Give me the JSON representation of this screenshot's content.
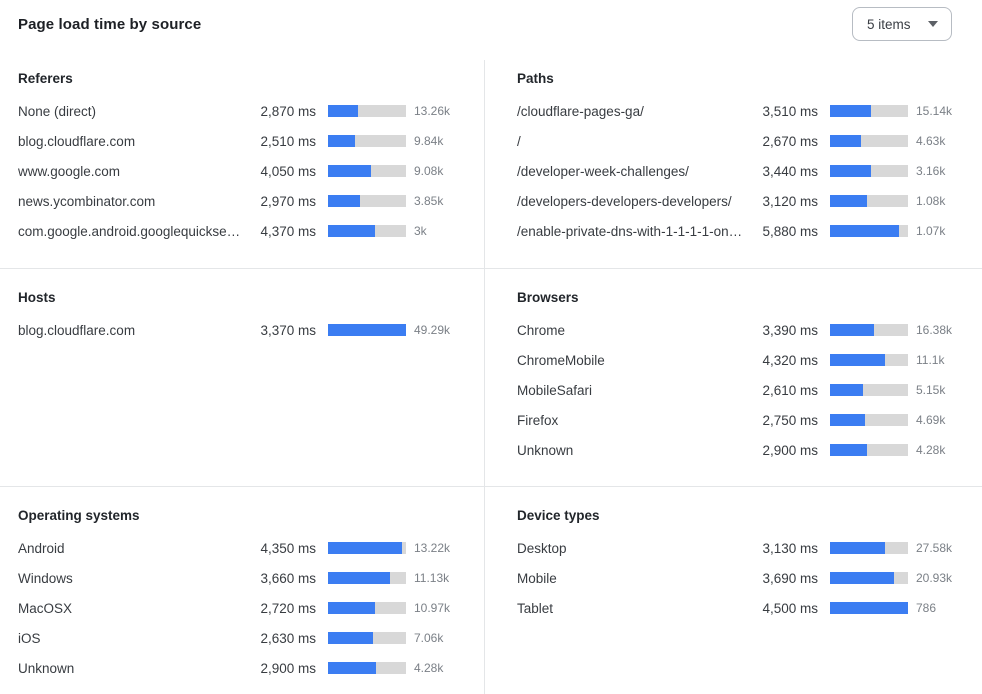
{
  "header": {
    "title": "Page load time by source",
    "items_dropdown": {
      "value": "5 items"
    }
  },
  "colors": {
    "bar_fill": "#3b7df2",
    "bar_track": "#d8d8d8",
    "divider": "#e4e6e8",
    "label_text": "#383c41",
    "count_text": "#7b8087"
  },
  "chart_data": [
    {
      "type": "bar",
      "orientation": "horizontal",
      "title": "Referers",
      "unit": "ms",
      "categories": [
        "None (direct)",
        "blog.cloudflare.com",
        "www.google.com",
        "news.ycombinator.com",
        "com.google.android.googlequicksearc…"
      ],
      "values_ms": [
        2870,
        2510,
        4050,
        2970,
        4370
      ],
      "value_labels": [
        "2,870 ms",
        "2,510 ms",
        "4,050 ms",
        "2,970 ms",
        "4,370 ms"
      ],
      "counts": [
        "13.26k",
        "9.84k",
        "9.08k",
        "3.85k",
        "3k"
      ],
      "bar_pct": [
        39,
        34,
        55,
        41,
        60
      ]
    },
    {
      "type": "bar",
      "orientation": "horizontal",
      "title": "Paths",
      "unit": "ms",
      "categories": [
        "/cloudflare-pages-ga/",
        "/",
        "/developer-week-challenges/",
        "/developers-developers-developers/",
        "/enable-private-dns-with-1-1-1-1-on-…"
      ],
      "values_ms": [
        3510,
        2670,
        3440,
        3120,
        5880
      ],
      "value_labels": [
        "3,510 ms",
        "2,670 ms",
        "3,440 ms",
        "3,120 ms",
        "5,880 ms"
      ],
      "counts": [
        "15.14k",
        "4.63k",
        "3.16k",
        "1.08k",
        "1.07k"
      ],
      "bar_pct": [
        53,
        40,
        52,
        47,
        89
      ]
    },
    {
      "type": "bar",
      "orientation": "horizontal",
      "title": "Hosts",
      "unit": "ms",
      "categories": [
        "blog.cloudflare.com"
      ],
      "values_ms": [
        3370
      ],
      "value_labels": [
        "3,370 ms"
      ],
      "counts": [
        "49.29k"
      ],
      "bar_pct": [
        100
      ]
    },
    {
      "type": "bar",
      "orientation": "horizontal",
      "title": "Browsers",
      "unit": "ms",
      "categories": [
        "Chrome",
        "ChromeMobile",
        "MobileSafari",
        "Firefox",
        "Unknown"
      ],
      "values_ms": [
        3390,
        4320,
        2610,
        2750,
        2900
      ],
      "value_labels": [
        "3,390 ms",
        "4,320 ms",
        "2,610 ms",
        "2,750 ms",
        "2,900 ms"
      ],
      "counts": [
        "16.38k",
        "11.1k",
        "5.15k",
        "4.69k",
        "4.28k"
      ],
      "bar_pct": [
        56,
        71,
        42,
        45,
        48
      ]
    },
    {
      "type": "bar",
      "orientation": "horizontal",
      "title": "Operating systems",
      "unit": "ms",
      "categories": [
        "Android",
        "Windows",
        "MacOSX",
        "iOS",
        "Unknown"
      ],
      "values_ms": [
        4350,
        3660,
        2720,
        2630,
        2900
      ],
      "value_labels": [
        "4,350 ms",
        "3,660 ms",
        "2,720 ms",
        "2,630 ms",
        "2,900 ms"
      ],
      "counts": [
        "13.22k",
        "11.13k",
        "10.97k",
        "7.06k",
        "4.28k"
      ],
      "bar_pct": [
        95,
        80,
        60,
        58,
        62
      ]
    },
    {
      "type": "bar",
      "orientation": "horizontal",
      "title": "Device types",
      "unit": "ms",
      "categories": [
        "Desktop",
        "Mobile",
        "Tablet"
      ],
      "values_ms": [
        3130,
        3690,
        4500
      ],
      "value_labels": [
        "3,130 ms",
        "3,690 ms",
        "4,500 ms"
      ],
      "counts": [
        "27.58k",
        "20.93k",
        "786"
      ],
      "bar_pct": [
        70,
        82,
        100
      ]
    }
  ]
}
